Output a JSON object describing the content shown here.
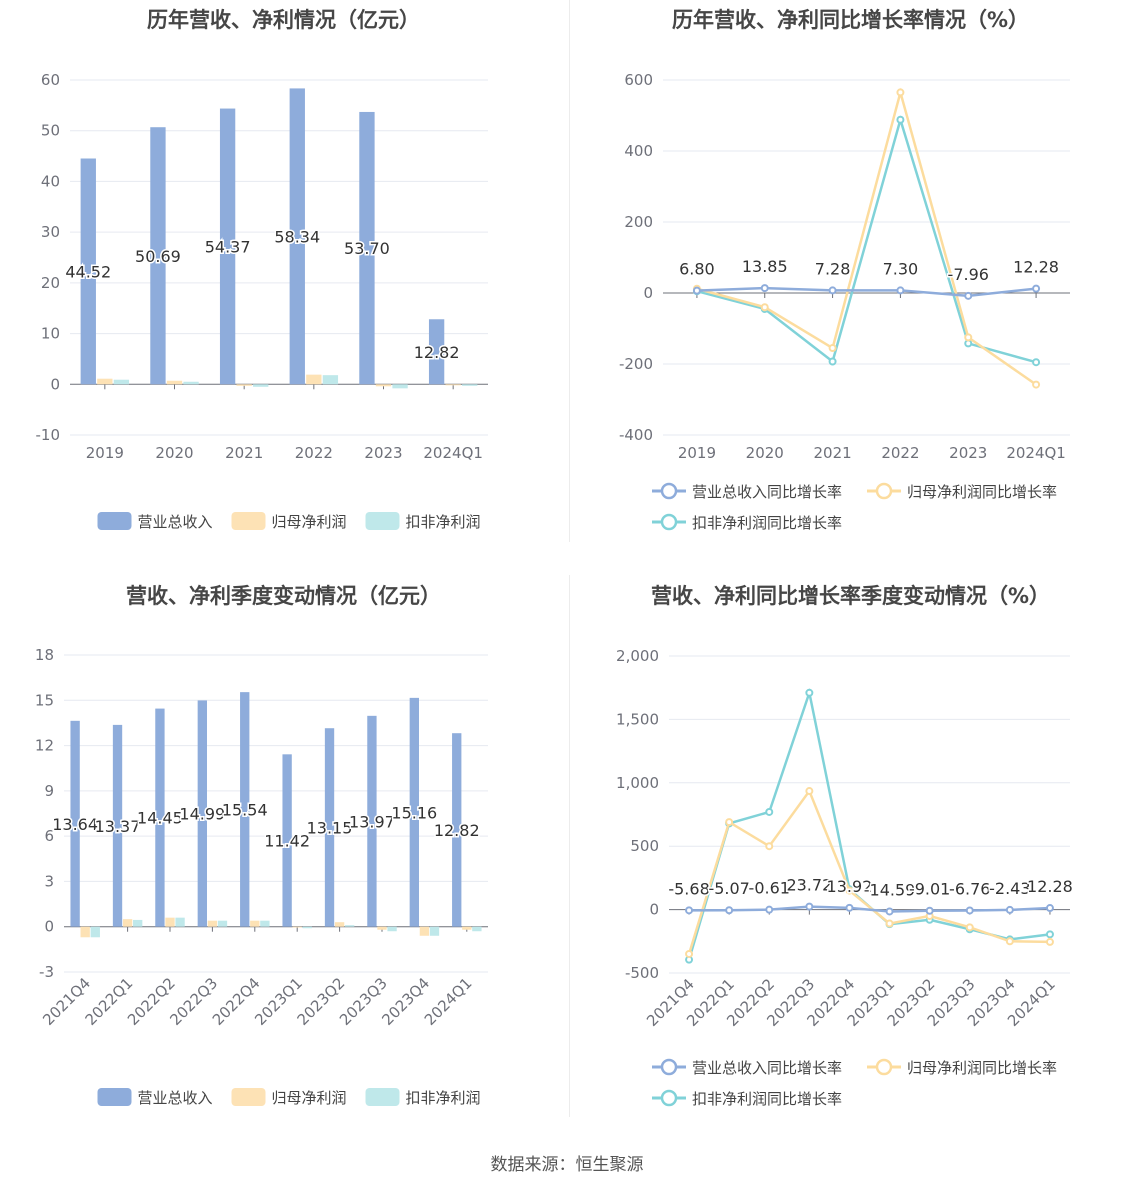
{
  "footer": {
    "source_label": "数据来源：",
    "source_name": "恒生聚源"
  },
  "colors": {
    "revenue": "#8eacdb",
    "net_profit": "#fde2b5",
    "deducted_profit": "#bfe8ea",
    "revenue_line": "#8eacdb",
    "net_profit_line": "#fcdc9e",
    "deducted_line": "#80d2d8"
  },
  "chart_data": [
    {
      "id": "annual_amount",
      "type": "bar",
      "title": "历年营收、净利情况（亿元）",
      "categories": [
        "2019",
        "2020",
        "2021",
        "2022",
        "2023",
        "2024Q1"
      ],
      "series": [
        {
          "name": "营业总收入",
          "values": [
            44.52,
            50.69,
            54.37,
            58.34,
            53.7,
            12.82
          ],
          "labels": [
            "44.52",
            "50.69",
            "54.37",
            "58.34",
            "53.70",
            "12.82"
          ]
        },
        {
          "name": "归母净利润",
          "values": [
            1.1,
            0.7,
            -0.3,
            1.9,
            -0.4,
            -0.2
          ]
        },
        {
          "name": "扣非净利润",
          "values": [
            0.9,
            0.5,
            -0.5,
            1.8,
            -0.8,
            -0.3
          ]
        }
      ],
      "ylim": [
        -10,
        60
      ],
      "yticks": [
        -10,
        0,
        10,
        20,
        30,
        40,
        50,
        60
      ],
      "ytick_labels": [
        "-10",
        "0",
        "10",
        "20",
        "30",
        "40",
        "50",
        "60"
      ],
      "grid": true,
      "legend": "bottom"
    },
    {
      "id": "annual_growth",
      "type": "line",
      "title": "历年营收、净利同比增长率情况（%）",
      "categories": [
        "2019",
        "2020",
        "2021",
        "2022",
        "2023",
        "2024Q1"
      ],
      "series": [
        {
          "name": "营业总收入同比增长率",
          "values": [
            6.8,
            13.85,
            7.28,
            7.3,
            -7.96,
            12.28
          ],
          "labels": [
            "6.80",
            "13.85",
            "7.28",
            "7.30",
            "-7.96",
            "12.28"
          ]
        },
        {
          "name": "归母净利润同比增长率",
          "values": [
            12,
            -40,
            -155,
            565,
            -125,
            -258
          ]
        },
        {
          "name": "扣非净利润同比增长率",
          "values": [
            5,
            -45,
            -193,
            488,
            -142,
            -195
          ]
        }
      ],
      "ylim": [
        -400,
        600
      ],
      "yticks": [
        -400,
        -200,
        0,
        200,
        400,
        600
      ],
      "ytick_labels": [
        "-400",
        "-200",
        "0",
        "200",
        "400",
        "600"
      ],
      "grid": true,
      "legend": "bottom"
    },
    {
      "id": "quarterly_amount",
      "type": "bar",
      "title": "营收、净利季度变动情况（亿元）",
      "categories": [
        "2021Q4",
        "2022Q1",
        "2022Q2",
        "2022Q3",
        "2022Q4",
        "2023Q1",
        "2023Q2",
        "2023Q3",
        "2023Q4",
        "2024Q1"
      ],
      "series": [
        {
          "name": "营业总收入",
          "values": [
            13.64,
            13.37,
            14.45,
            14.99,
            15.54,
            11.42,
            13.15,
            13.97,
            15.16,
            12.82
          ],
          "labels": [
            "13.64",
            "13.37",
            "14.45",
            "14.99",
            "15.54",
            "11.42",
            "13.15",
            "13.97",
            "15.16",
            "12.82"
          ]
        },
        {
          "name": "归母净利润",
          "values": [
            -0.7,
            0.5,
            0.6,
            0.4,
            0.4,
            -0.05,
            0.3,
            -0.2,
            -0.6,
            -0.2
          ]
        },
        {
          "name": "扣非净利润",
          "values": [
            -0.7,
            0.45,
            0.6,
            0.4,
            0.4,
            -0.1,
            0.1,
            -0.3,
            -0.6,
            -0.3
          ]
        }
      ],
      "ylim": [
        -3,
        18
      ],
      "yticks": [
        -3,
        0,
        3,
        6,
        9,
        12,
        15,
        18
      ],
      "ytick_labels": [
        "-3",
        "0",
        "3",
        "6",
        "9",
        "12",
        "15",
        "18"
      ],
      "grid": true,
      "legend": "bottom"
    },
    {
      "id": "quarterly_growth",
      "type": "line",
      "title": "营收、净利同比增长率季度变动情况（%）",
      "categories": [
        "2021Q4",
        "2022Q1",
        "2022Q2",
        "2022Q3",
        "2022Q4",
        "2023Q1",
        "2023Q2",
        "2023Q3",
        "2023Q4",
        "2024Q1"
      ],
      "series": [
        {
          "name": "营业总收入同比增长率",
          "values": [
            -5.68,
            -5.07,
            -0.61,
            23.72,
            13.92,
            -14.59,
            -9.01,
            -6.76,
            -2.43,
            12.28
          ],
          "labels": [
            "-5.68",
            "-5.07",
            "-0.61",
            "23.72",
            "13.92",
            "-14.59",
            "-9.01",
            "-6.76",
            "-2.43",
            "12.28"
          ]
        },
        {
          "name": "归母净利润同比增长率",
          "values": [
            -350,
            690,
            500,
            935,
            150,
            -110,
            -50,
            -140,
            -250,
            -255
          ]
        },
        {
          "name": "扣非净利润同比增长率",
          "values": [
            -395,
            680,
            770,
            1710,
            160,
            -115,
            -80,
            -155,
            -235,
            -195
          ]
        }
      ],
      "ylim": [
        -500,
        2000
      ],
      "yticks": [
        -500,
        0,
        500,
        1000,
        1500,
        2000
      ],
      "ytick_labels": [
        "-500",
        "0",
        "500",
        "1,000",
        "1,500",
        "2,000"
      ],
      "grid": true,
      "legend": "bottom"
    }
  ]
}
